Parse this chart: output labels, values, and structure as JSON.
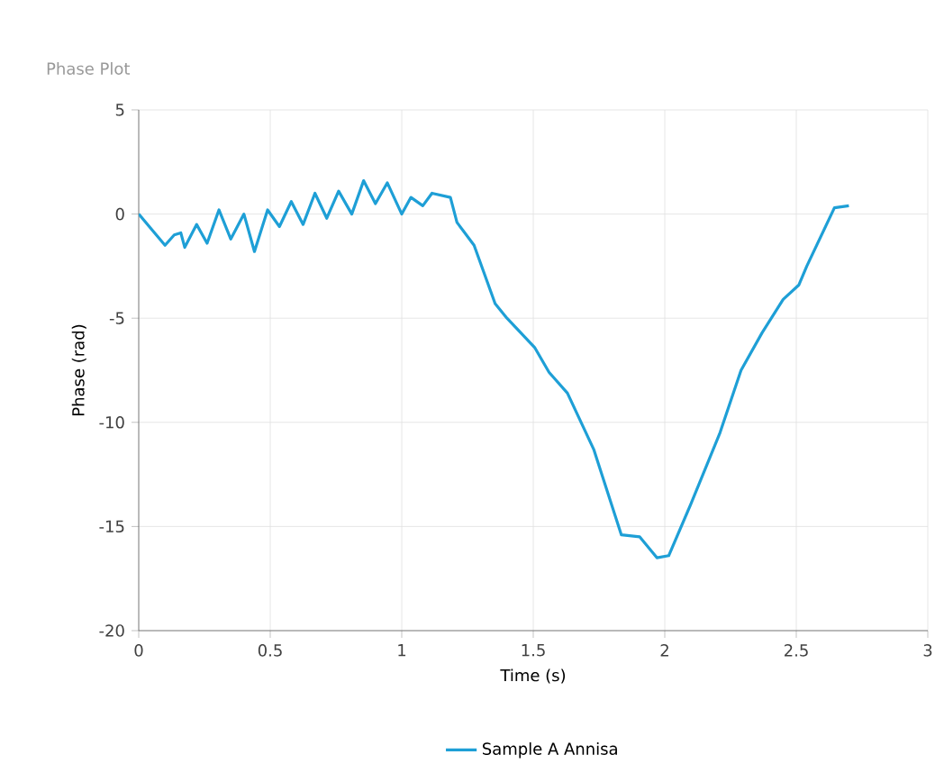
{
  "chart_data": {
    "type": "line",
    "title": "Phase Plot",
    "xlabel": "Time (s)",
    "ylabel": "Phase (rad)",
    "xlim": [
      0,
      3
    ],
    "xticks": [
      0,
      0.5,
      1,
      1.5,
      2,
      2.5,
      3
    ],
    "ylim": [
      -20,
      5
    ],
    "yticks": [
      -20,
      -15,
      -10,
      -5,
      0,
      5
    ],
    "grid": true,
    "legend": "bottom",
    "marker": "none",
    "line_style": "solid",
    "series": [
      {
        "name": "Sample A Annisa",
        "color": "#1e9fd6",
        "x": [
          0,
          0.1,
          0.135,
          0.16,
          0.175,
          0.22,
          0.26,
          0.305,
          0.35,
          0.4,
          0.44,
          0.49,
          0.535,
          0.58,
          0.625,
          0.67,
          0.715,
          0.76,
          0.81,
          0.855,
          0.9,
          0.945,
          1.0,
          1.035,
          1.08,
          1.115,
          1.185,
          1.21,
          1.275,
          1.355,
          1.4,
          1.505,
          1.56,
          1.63,
          1.73,
          1.835,
          1.905,
          1.97,
          2.015,
          2.1,
          2.21,
          2.29,
          2.37,
          2.45,
          2.51,
          2.54,
          2.645,
          2.7
        ],
        "values": [
          0,
          -1.5,
          -1.0,
          -0.9,
          -1.6,
          -0.5,
          -1.4,
          0.2,
          -1.2,
          0,
          -1.8,
          0.2,
          -0.6,
          0.6,
          -0.5,
          1.0,
          -0.2,
          1.1,
          0,
          1.6,
          0.5,
          1.5,
          0,
          0.8,
          0.4,
          1.0,
          0.8,
          -0.4,
          -1.5,
          -4.3,
          -5.0,
          -6.4,
          -7.6,
          -8.6,
          -11.3,
          -15.4,
          -15.5,
          -16.5,
          -16.4,
          -13.9,
          -10.5,
          -7.5,
          -5.7,
          -4.1,
          -3.4,
          -2.5,
          0.3,
          0.4
        ]
      }
    ]
  }
}
